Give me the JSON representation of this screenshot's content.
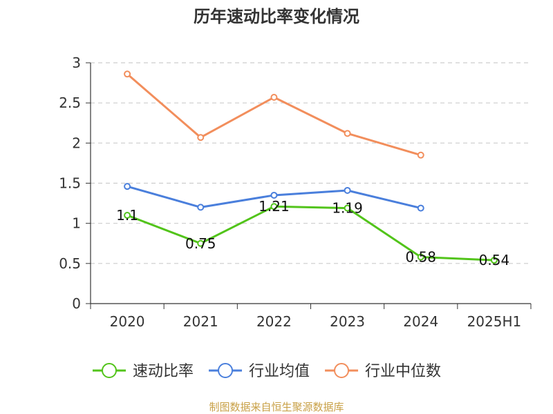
{
  "chart_data": {
    "type": "line",
    "title": "历年速动比率变化情况",
    "categories": [
      "2020",
      "2021",
      "2022",
      "2023",
      "2024",
      "2025H1"
    ],
    "ylim": [
      0,
      3
    ],
    "yticks": [
      "0",
      "0.5",
      "1",
      "1.5",
      "2",
      "2.5",
      "3"
    ],
    "grid": true,
    "legend_position": "bottom",
    "series": [
      {
        "name": "速动比率",
        "color": "#52c41a",
        "values": [
          1.1,
          0.75,
          1.21,
          1.19,
          0.58,
          0.54
        ],
        "labels": [
          "1.1",
          "0.75",
          "1.21",
          "1.19",
          "0.58",
          "0.54"
        ]
      },
      {
        "name": "行业均值",
        "color": "#4a7fdc",
        "values": [
          1.46,
          1.2,
          1.35,
          1.41,
          1.19,
          null
        ]
      },
      {
        "name": "行业中位数",
        "color": "#f28e5c",
        "values": [
          2.86,
          2.07,
          2.57,
          2.12,
          1.85,
          null
        ]
      }
    ]
  },
  "source": "制图数据来自恒生聚源数据库"
}
